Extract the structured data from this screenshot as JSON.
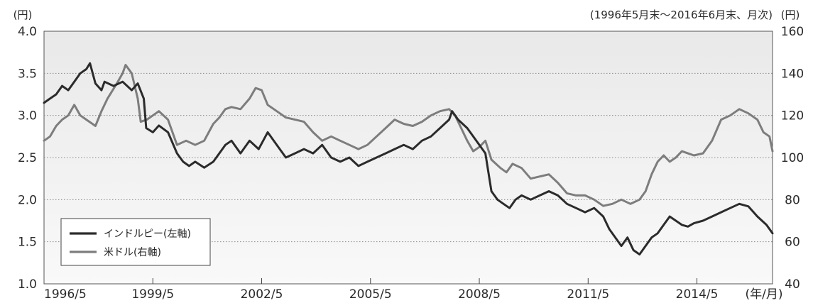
{
  "chart_data": {
    "type": "line",
    "period_note": "(1996年5月末～2016年6月末、月次)",
    "left_unit": "(円)",
    "right_unit": "(円)",
    "x_unit": "(年/月)",
    "x_range": [
      1996.333,
      2016.417
    ],
    "x_ticks": [
      {
        "label": "1996/5",
        "value": 1996.333
      },
      {
        "label": "1999/5",
        "value": 1999.333
      },
      {
        "label": "2002/5",
        "value": 2002.333
      },
      {
        "label": "2005/5",
        "value": 2005.333
      },
      {
        "label": "2008/5",
        "value": 2008.333
      },
      {
        "label": "2011/5",
        "value": 2011.333
      },
      {
        "label": "2014/5",
        "value": 2014.333
      }
    ],
    "y_left": {
      "min": 1.0,
      "max": 4.0,
      "ticks": [
        "1.0",
        "1.5",
        "2.0",
        "2.5",
        "3.0",
        "3.5",
        "4.0"
      ]
    },
    "y_right": {
      "min": 40,
      "max": 160,
      "ticks": [
        "40",
        "60",
        "80",
        "100",
        "120",
        "140",
        "160"
      ]
    },
    "grid": "horizontal dotted",
    "legend": "bottom-left",
    "series": [
      {
        "name": "インドルピー(左軸)",
        "axis": "left",
        "color": "#2b2b2b",
        "points": [
          [
            1996.333,
            3.15
          ],
          [
            1996.5,
            3.2
          ],
          [
            1996.667,
            3.25
          ],
          [
            1996.833,
            3.35
          ],
          [
            1997.0,
            3.3
          ],
          [
            1997.167,
            3.4
          ],
          [
            1997.333,
            3.5
          ],
          [
            1997.5,
            3.55
          ],
          [
            1997.6,
            3.62
          ],
          [
            1997.75,
            3.38
          ],
          [
            1997.917,
            3.3
          ],
          [
            1998.0,
            3.4
          ],
          [
            1998.25,
            3.35
          ],
          [
            1998.5,
            3.4
          ],
          [
            1998.75,
            3.3
          ],
          [
            1998.917,
            3.38
          ],
          [
            1999.083,
            3.2
          ],
          [
            1999.15,
            2.85
          ],
          [
            1999.333,
            2.8
          ],
          [
            1999.5,
            2.88
          ],
          [
            1999.75,
            2.8
          ],
          [
            2000.0,
            2.55
          ],
          [
            2000.167,
            2.45
          ],
          [
            2000.333,
            2.4
          ],
          [
            2000.5,
            2.45
          ],
          [
            2000.75,
            2.38
          ],
          [
            2001.0,
            2.45
          ],
          [
            2001.25,
            2.6
          ],
          [
            2001.333,
            2.65
          ],
          [
            2001.5,
            2.7
          ],
          [
            2001.75,
            2.55
          ],
          [
            2002.0,
            2.7
          ],
          [
            2002.25,
            2.6
          ],
          [
            2002.5,
            2.8
          ],
          [
            2002.75,
            2.65
          ],
          [
            2003.0,
            2.5
          ],
          [
            2003.25,
            2.55
          ],
          [
            2003.5,
            2.6
          ],
          [
            2003.75,
            2.55
          ],
          [
            2004.0,
            2.65
          ],
          [
            2004.25,
            2.5
          ],
          [
            2004.5,
            2.45
          ],
          [
            2004.75,
            2.5
          ],
          [
            2005.0,
            2.4
          ],
          [
            2005.25,
            2.45
          ],
          [
            2005.5,
            2.5
          ],
          [
            2005.75,
            2.55
          ],
          [
            2006.0,
            2.6
          ],
          [
            2006.25,
            2.65
          ],
          [
            2006.5,
            2.6
          ],
          [
            2006.75,
            2.7
          ],
          [
            2007.0,
            2.75
          ],
          [
            2007.25,
            2.85
          ],
          [
            2007.5,
            2.95
          ],
          [
            2007.583,
            3.05
          ],
          [
            2007.75,
            2.95
          ],
          [
            2008.0,
            2.85
          ],
          [
            2008.25,
            2.7
          ],
          [
            2008.5,
            2.55
          ],
          [
            2008.667,
            2.1
          ],
          [
            2008.833,
            2.0
          ],
          [
            2009.0,
            1.95
          ],
          [
            2009.167,
            1.9
          ],
          [
            2009.333,
            2.0
          ],
          [
            2009.5,
            2.05
          ],
          [
            2009.75,
            2.0
          ],
          [
            2010.0,
            2.05
          ],
          [
            2010.25,
            2.1
          ],
          [
            2010.5,
            2.05
          ],
          [
            2010.75,
            1.95
          ],
          [
            2011.0,
            1.9
          ],
          [
            2011.25,
            1.85
          ],
          [
            2011.5,
            1.9
          ],
          [
            2011.75,
            1.8
          ],
          [
            2011.917,
            1.65
          ],
          [
            2012.083,
            1.55
          ],
          [
            2012.25,
            1.45
          ],
          [
            2012.417,
            1.55
          ],
          [
            2012.583,
            1.4
          ],
          [
            2012.75,
            1.35
          ],
          [
            2012.917,
            1.45
          ],
          [
            2013.083,
            1.55
          ],
          [
            2013.25,
            1.6
          ],
          [
            2013.417,
            1.7
          ],
          [
            2013.583,
            1.8
          ],
          [
            2013.75,
            1.75
          ],
          [
            2013.917,
            1.7
          ],
          [
            2014.083,
            1.68
          ],
          [
            2014.25,
            1.72
          ],
          [
            2014.5,
            1.75
          ],
          [
            2014.75,
            1.8
          ],
          [
            2015.0,
            1.85
          ],
          [
            2015.25,
            1.9
          ],
          [
            2015.5,
            1.95
          ],
          [
            2015.75,
            1.92
          ],
          [
            2016.0,
            1.8
          ],
          [
            2016.25,
            1.7
          ],
          [
            2016.417,
            1.6
          ]
        ]
      },
      {
        "name": "米ドル(右軸)",
        "axis": "right",
        "color": "#7d7d7d",
        "points": [
          [
            1996.333,
            108
          ],
          [
            1996.5,
            110
          ],
          [
            1996.667,
            115
          ],
          [
            1996.833,
            118
          ],
          [
            1997.0,
            120
          ],
          [
            1997.167,
            125
          ],
          [
            1997.333,
            120
          ],
          [
            1997.5,
            118
          ],
          [
            1997.75,
            115
          ],
          [
            1997.917,
            122
          ],
          [
            1998.083,
            128
          ],
          [
            1998.333,
            135
          ],
          [
            1998.5,
            140
          ],
          [
            1998.583,
            144
          ],
          [
            1998.75,
            140
          ],
          [
            1998.917,
            128
          ],
          [
            1999.0,
            117
          ],
          [
            1999.167,
            118
          ],
          [
            1999.333,
            120
          ],
          [
            1999.5,
            122
          ],
          [
            1999.75,
            118
          ],
          [
            2000.0,
            106
          ],
          [
            2000.25,
            108
          ],
          [
            2000.5,
            106
          ],
          [
            2000.75,
            108
          ],
          [
            2001.0,
            116
          ],
          [
            2001.167,
            119
          ],
          [
            2001.333,
            123
          ],
          [
            2001.5,
            124
          ],
          [
            2001.75,
            123
          ],
          [
            2002.0,
            128
          ],
          [
            2002.167,
            133
          ],
          [
            2002.333,
            132
          ],
          [
            2002.5,
            125
          ],
          [
            2002.75,
            122
          ],
          [
            2003.0,
            119
          ],
          [
            2003.25,
            118
          ],
          [
            2003.5,
            117
          ],
          [
            2003.75,
            112
          ],
          [
            2004.0,
            108
          ],
          [
            2004.25,
            110
          ],
          [
            2004.5,
            108
          ],
          [
            2004.75,
            106
          ],
          [
            2005.0,
            104
          ],
          [
            2005.25,
            106
          ],
          [
            2005.5,
            110
          ],
          [
            2005.75,
            114
          ],
          [
            2006.0,
            118
          ],
          [
            2006.25,
            116
          ],
          [
            2006.5,
            115
          ],
          [
            2006.75,
            117
          ],
          [
            2007.0,
            120
          ],
          [
            2007.25,
            122
          ],
          [
            2007.5,
            123
          ],
          [
            2007.667,
            120
          ],
          [
            2007.833,
            114
          ],
          [
            2008.0,
            108
          ],
          [
            2008.167,
            103
          ],
          [
            2008.333,
            105
          ],
          [
            2008.5,
            108
          ],
          [
            2008.667,
            99
          ],
          [
            2008.917,
            95
          ],
          [
            2009.083,
            93
          ],
          [
            2009.25,
            97
          ],
          [
            2009.5,
            95
          ],
          [
            2009.75,
            90
          ],
          [
            2010.0,
            91
          ],
          [
            2010.25,
            92
          ],
          [
            2010.5,
            88
          ],
          [
            2010.75,
            83
          ],
          [
            2011.0,
            82
          ],
          [
            2011.25,
            82
          ],
          [
            2011.5,
            80
          ],
          [
            2011.75,
            77
          ],
          [
            2012.0,
            78
          ],
          [
            2012.25,
            80
          ],
          [
            2012.5,
            78
          ],
          [
            2012.75,
            80
          ],
          [
            2012.917,
            84
          ],
          [
            2013.083,
            92
          ],
          [
            2013.25,
            98
          ],
          [
            2013.417,
            101
          ],
          [
            2013.583,
            98
          ],
          [
            2013.75,
            100
          ],
          [
            2013.917,
            103
          ],
          [
            2014.083,
            102
          ],
          [
            2014.25,
            101
          ],
          [
            2014.5,
            102
          ],
          [
            2014.75,
            108
          ],
          [
            2015.0,
            118
          ],
          [
            2015.25,
            120
          ],
          [
            2015.5,
            123
          ],
          [
            2015.75,
            121
          ],
          [
            2016.0,
            118
          ],
          [
            2016.167,
            112
          ],
          [
            2016.333,
            110
          ],
          [
            2016.417,
            103
          ]
        ]
      }
    ]
  }
}
